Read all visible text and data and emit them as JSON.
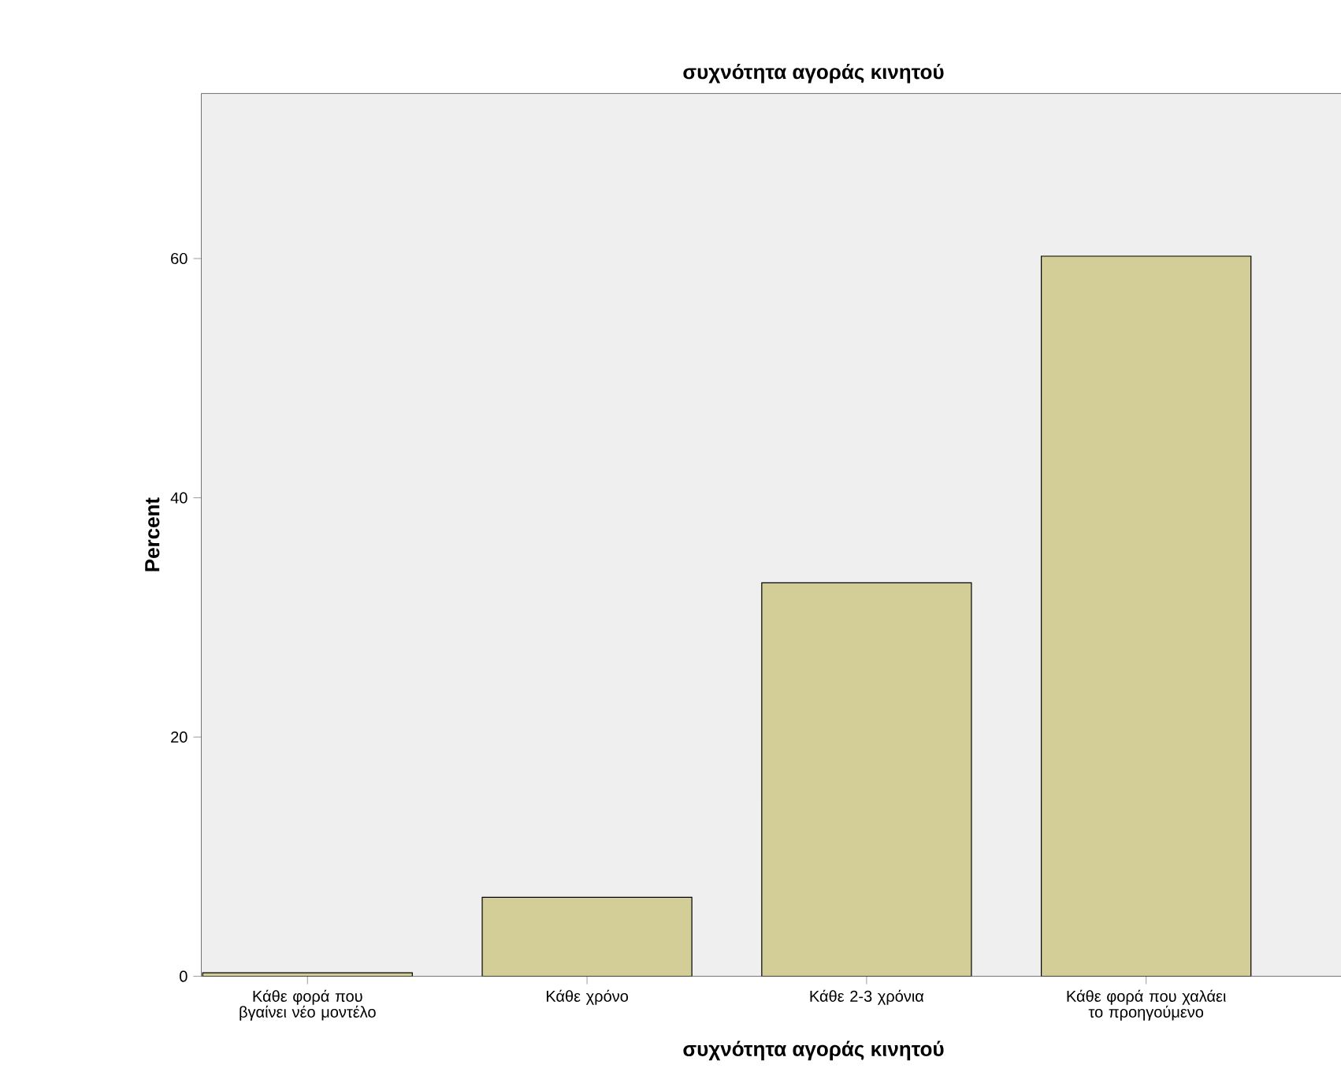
{
  "chart_data": {
    "type": "bar",
    "title": "συχνότητα αγοράς κινητού",
    "xlabel": "συχνότητα αγοράς κινητού",
    "ylabel": "Percent",
    "categories": [
      "Κάθε φορά που βγαίνει νέο μοντέλο",
      "Κάθε χρόνο",
      "Κάθε 2-3 χρόνια",
      "Κάθε φορά που χαλάει το προηγούμενο"
    ],
    "values": [
      0.3,
      6.6,
      32.9,
      60.2
    ],
    "color": "#d3ce97",
    "ylim": [
      0,
      73.8
    ],
    "yticks": [
      0,
      20,
      40,
      60
    ],
    "grid": false
  }
}
